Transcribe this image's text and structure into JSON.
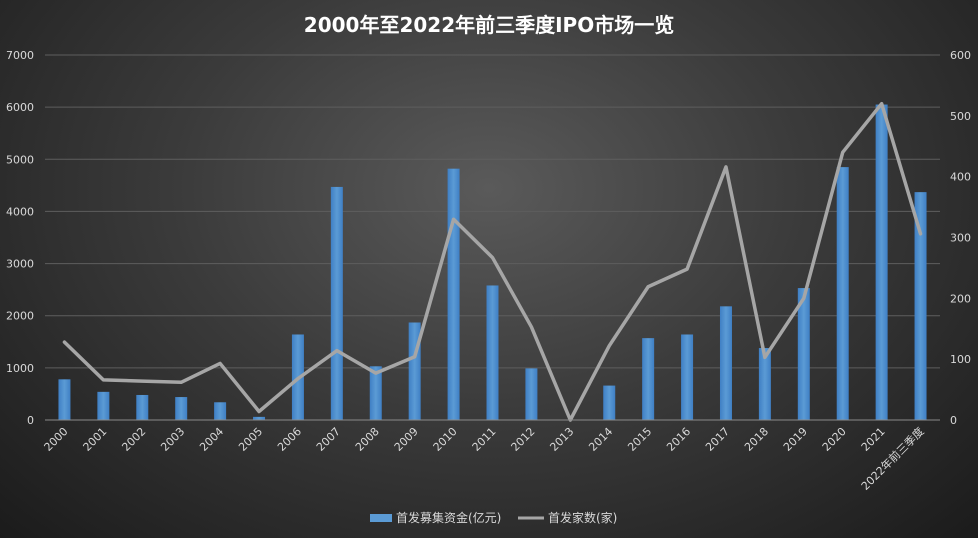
{
  "chart_data": {
    "type": "bar",
    "title": "2000年至2022年前三季度IPO市场一览",
    "categories": [
      "2000",
      "2001",
      "2002",
      "2003",
      "2004",
      "2005",
      "2006",
      "2007",
      "2008",
      "2009",
      "2010",
      "2011",
      "2012",
      "2013",
      "2014",
      "2015",
      "2016",
      "2017",
      "2018",
      "2019",
      "2020",
      "2021",
      "2022年前三季度"
    ],
    "series": [
      {
        "name": "首发募集资金(亿元)",
        "type": "bar",
        "axis": "left",
        "values": [
          780,
          540,
          480,
          440,
          340,
          60,
          1640,
          4470,
          1030,
          1870,
          4820,
          2580,
          990,
          0,
          660,
          1570,
          1640,
          2180,
          1380,
          2530,
          4850,
          6050,
          4370
        ]
      },
      {
        "name": "首发家数(家)",
        "type": "line",
        "axis": "right",
        "values": [
          128,
          66,
          64,
          62,
          93,
          14,
          68,
          114,
          77,
          104,
          330,
          267,
          153,
          0,
          122,
          219,
          248,
          416,
          103,
          200,
          440,
          520,
          306
        ]
      }
    ],
    "ylim_left": [
      0,
      7000
    ],
    "ylim_right": [
      0,
      600
    ],
    "yticks_left": [
      "0",
      "1000",
      "2000",
      "3000",
      "4000",
      "5000",
      "6000",
      "7000"
    ],
    "yticks_right": [
      "0",
      "100",
      "200",
      "300",
      "400",
      "500",
      "600"
    ],
    "grid": true,
    "legend": "bottom",
    "colors": {
      "bar": "#5b9bd5",
      "line": "#a6a6a6"
    }
  }
}
